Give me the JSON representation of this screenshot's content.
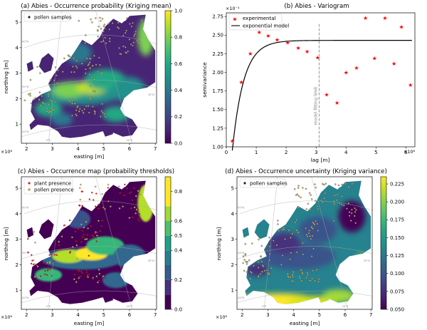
{
  "colors": {
    "viridis": [
      "#440154",
      "#482475",
      "#414487",
      "#355f8d",
      "#2a788e",
      "#21918c",
      "#22a884",
      "#44bf70",
      "#7ad151",
      "#bddf26",
      "#fde725"
    ],
    "land_low": "#440154",
    "land_mid": "#2a788e",
    "land_high": "#fde725",
    "sample_fill": "#c8b868",
    "sample_edge": "#2a1b33",
    "plant_presence": "#e31a1c",
    "pollen_presence": "#c8b868",
    "experimental": "#ff0000",
    "model_line": "#000000",
    "fit_limit": "#8a8a8a",
    "graticule": "#a9a9a9"
  },
  "chart_data": [
    {
      "id": "a",
      "type": "heatmap",
      "title": "(a) Abies - Occurrence probability (Kriging mean)",
      "xlabel": "easting [m]",
      "ylabel": "northing [m]",
      "x_multiplier": "×10⁶",
      "xlim": [
        1.8,
        7.05
      ],
      "ylim": [
        0.25,
        5.45
      ],
      "xticks": [
        "2",
        "3",
        "4",
        "5",
        "6",
        "7"
      ],
      "yticks": [
        "1",
        "2",
        "3",
        "4",
        "5"
      ],
      "colorbar_ticks": [
        "0.0",
        "0.2",
        "0.4",
        "0.6",
        "0.8",
        "1.0"
      ],
      "legend": [
        "pollen samples"
      ],
      "graticule_labels": [
        "0°E",
        "20°E",
        "60°N",
        "50°N",
        "40°N",
        "30°N"
      ],
      "legend_position": "upper-left"
    },
    {
      "id": "b",
      "type": "scatter",
      "title": "(b) Abies - Variogram",
      "xlabel": "lag [m]",
      "ylabel": "semivariance",
      "y_multiplier": "×10⁻¹",
      "x_multiplier": "×10⁶",
      "xlim": [
        0,
        6.3
      ],
      "ylim": [
        1.0,
        2.8
      ],
      "xticks": [
        "0",
        "1",
        "2",
        "3",
        "4",
        "5",
        "6"
      ],
      "yticks": [
        "1.00",
        "1.25",
        "1.50",
        "1.75",
        "2.00",
        "2.25",
        "2.50",
        "2.75"
      ],
      "legend": [
        "experimental",
        "exponential model"
      ],
      "legend_position": "upper-left",
      "fit_limit_label": "model fitting limit",
      "fit_limit_x": 3.1,
      "experimental_points": [
        {
          "x": 0.2,
          "y": 1.08
        },
        {
          "x": 0.5,
          "y": 1.87
        },
        {
          "x": 0.8,
          "y": 2.25
        },
        {
          "x": 1.1,
          "y": 2.54
        },
        {
          "x": 1.4,
          "y": 2.49
        },
        {
          "x": 1.7,
          "y": 2.44
        },
        {
          "x": 2.05,
          "y": 2.4
        },
        {
          "x": 2.4,
          "y": 2.33
        },
        {
          "x": 2.7,
          "y": 2.28
        },
        {
          "x": 3.05,
          "y": 2.2
        },
        {
          "x": 3.35,
          "y": 1.7
        },
        {
          "x": 3.7,
          "y": 1.59
        },
        {
          "x": 4.0,
          "y": 2.0
        },
        {
          "x": 4.35,
          "y": 2.06
        },
        {
          "x": 4.65,
          "y": 2.73
        },
        {
          "x": 4.95,
          "y": 2.19
        },
        {
          "x": 5.3,
          "y": 2.73
        },
        {
          "x": 5.6,
          "y": 2.12
        },
        {
          "x": 5.85,
          "y": 2.61
        },
        {
          "x": 6.15,
          "y": 1.83
        }
      ],
      "model": {
        "nugget": 0.95,
        "sill": 2.43,
        "range": 0.38,
        "x_start": 0.2,
        "x_end": 6.2
      }
    },
    {
      "id": "c",
      "type": "heatmap",
      "title": "(c) Abies - Occurrence map (probability thresholds)",
      "xlabel": "easting [m]",
      "ylabel": "northing [m]",
      "x_multiplier": "×10⁶",
      "xlim": [
        1.8,
        7.05
      ],
      "ylim": [
        0.25,
        5.45
      ],
      "xticks": [
        "2",
        "3",
        "4",
        "5",
        "6",
        "7"
      ],
      "yticks": [
        "1",
        "2",
        "3",
        "4",
        "5"
      ],
      "colorbar_ticks": [
        "0.0",
        "0.2",
        "0.4",
        "0.5",
        "0.6",
        "0.8"
      ],
      "legend": [
        "plant presence",
        "pollen presence"
      ],
      "graticule_labels": [
        "0°E",
        "20°E",
        "60°N",
        "50°N",
        "40°N",
        "30°N"
      ],
      "legend_position": "upper-left"
    },
    {
      "id": "d",
      "type": "heatmap",
      "title": "(d) Abies - Occurrence uncertainty (Kriging variance)",
      "xlabel": "easting [m]",
      "ylabel": "northing [m]",
      "x_multiplier": "×10⁶",
      "xlim": [
        1.8,
        7.05
      ],
      "ylim": [
        0.25,
        5.45
      ],
      "xticks": [
        "2",
        "3",
        "4",
        "5",
        "6",
        "7"
      ],
      "yticks": [
        "1",
        "2",
        "3",
        "4",
        "5"
      ],
      "colorbar_ticks": [
        "0.050",
        "0.075",
        "0.100",
        "0.125",
        "0.150",
        "0.175",
        "0.200",
        "0.225"
      ],
      "legend": [
        "pollen samples"
      ],
      "graticule_labels": [
        "0°E",
        "20°E",
        "60°N",
        "50°N",
        "40°N",
        "30°N"
      ],
      "legend_position": "upper-left"
    }
  ]
}
